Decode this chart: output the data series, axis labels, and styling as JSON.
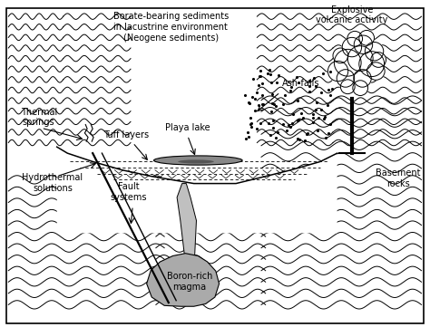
{
  "title": "",
  "bg_color": "#ffffff",
  "border_color": "#000000",
  "labels": {
    "explosive": "Explosive\nvolcanic activity",
    "borate": "Borate-bearing sediments\nin lacustrine environment\n(Neogene sediments)",
    "ash_falls": "Ash-falls",
    "playa_lake": "Playa lake",
    "tuff_layers": "Tuff layers",
    "thermal_springs": "Thermal\nsprings",
    "hydrothermal": "Hydrothermal\nsolutions",
    "fault_systems": "Fault\nsystems",
    "boron_magma": "Boron-rich\nmagma",
    "basement": "Basement\nrocks"
  },
  "figsize": [
    4.74,
    3.61
  ],
  "dpi": 100
}
